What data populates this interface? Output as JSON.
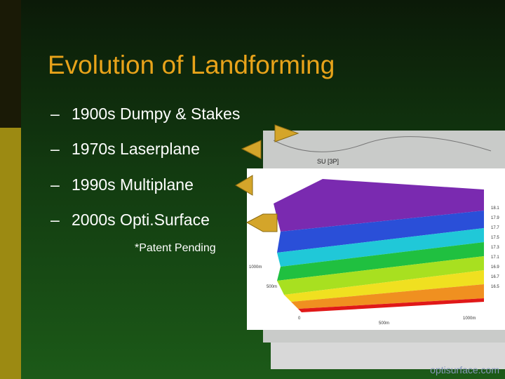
{
  "header": {
    "title": "Evolution of Landforming"
  },
  "bullets": [
    {
      "dash": "–",
      "text": "1900s Dumpy & Stakes"
    },
    {
      "dash": "–",
      "text": "1970s Laserplane"
    },
    {
      "dash": "–",
      "text": "1990s Multiplane"
    },
    {
      "dash": "–",
      "text": "2000s Opti.Surface"
    }
  ],
  "note": "*Patent Pending",
  "plot": {
    "map_label": "SU [3P]",
    "scale_labels": [
      "18.1",
      "17.9",
      "17.7",
      "17.5",
      "17.3",
      "17.1",
      "16.9",
      "16.7",
      "16.5"
    ],
    "axis_labels": [
      "1000m",
      "500m",
      "0",
      "500m",
      "1000m"
    ]
  },
  "footer": "optisurface.com"
}
